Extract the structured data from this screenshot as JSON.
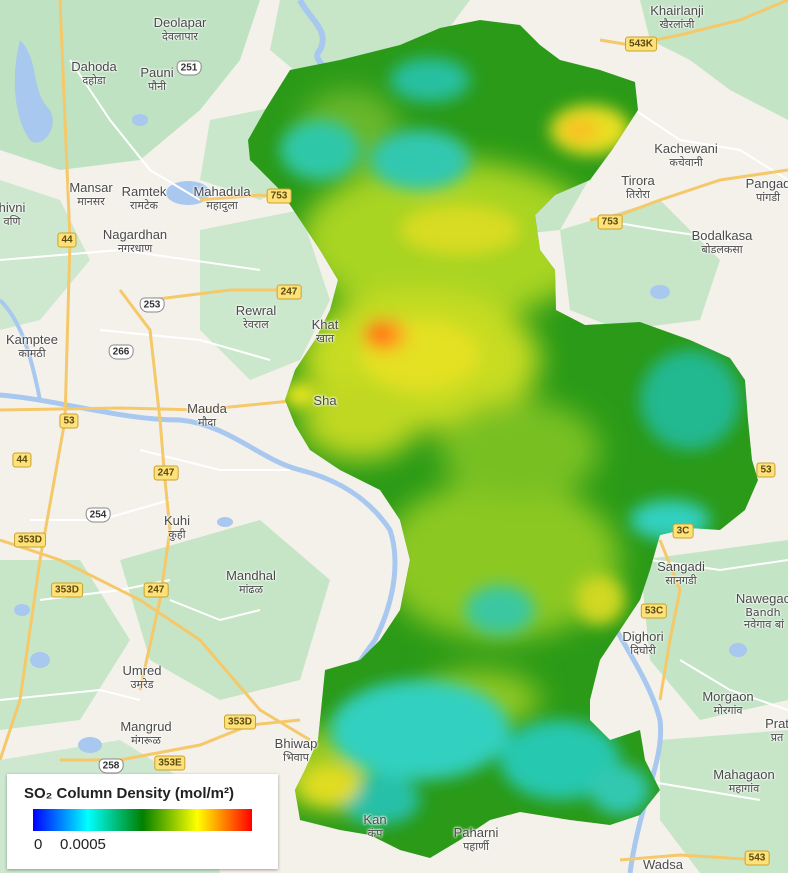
{
  "map": {
    "colors": {
      "land": "#f4f1ea",
      "forest": "#bfe2c2",
      "water": "#a8c8f0",
      "road_major": "#f5c86a",
      "road_minor": "#ffffff"
    },
    "places": [
      {
        "id": "deolapar",
        "en": "Deolapar",
        "hi": "देवलापार"
      },
      {
        "id": "khairlanji",
        "en": "Khairlanji",
        "hi": "खैरलांजी"
      },
      {
        "id": "dahoda",
        "en": "Dahoda",
        "hi": "दहोडा"
      },
      {
        "id": "pauni",
        "en": "Pauni",
        "hi": "पौनी"
      },
      {
        "id": "kachewani",
        "en": "Kachewani",
        "hi": "कचेवानी"
      },
      {
        "id": "mansar",
        "en": "Mansar",
        "hi": "मानसर"
      },
      {
        "id": "ramtek",
        "en": "Ramtek",
        "hi": "रामटेक"
      },
      {
        "id": "mahadula",
        "en": "Mahadula",
        "hi": "महादुला"
      },
      {
        "id": "tirora",
        "en": "Tirora",
        "hi": "तिरोरा"
      },
      {
        "id": "pangadi_n",
        "en": "Pangad",
        "hi": "पांगडी"
      },
      {
        "id": "shivni",
        "en": "hivni",
        "hi": "वणि"
      },
      {
        "id": "nagardhan",
        "en": "Nagardhan",
        "hi": "नगरधाण"
      },
      {
        "id": "bodalkasa",
        "en": "Bodalkasa",
        "hi": "बोडलकसा"
      },
      {
        "id": "rewral",
        "en": "Rewral",
        "hi": "रेवराल"
      },
      {
        "id": "khat",
        "en": "Khat",
        "hi": "खात"
      },
      {
        "id": "kamptee",
        "en": "Kamptee",
        "hi": "कामठी"
      },
      {
        "id": "mauda",
        "en": "Mauda",
        "hi": "मौदा"
      },
      {
        "id": "sha",
        "en": "Sha",
        "hi": ""
      },
      {
        "id": "kuhi",
        "en": "Kuhi",
        "hi": "कुही"
      },
      {
        "id": "sangadi",
        "en": "Sangadi",
        "hi": "सानगडी"
      },
      {
        "id": "mandhal",
        "en": "Mandhal",
        "hi": "मांढळ"
      },
      {
        "id": "nawegaon",
        "en": "Nawegac",
        "hi": "Bandh"
      },
      {
        "id": "nawegaon2",
        "en": "नवेगाव बां",
        "hi": ""
      },
      {
        "id": "dighori",
        "en": "Dighori",
        "hi": "दिघोरी"
      },
      {
        "id": "umred",
        "en": "Umred",
        "hi": "उमरेड"
      },
      {
        "id": "morgaon",
        "en": "Morgaon",
        "hi": "मोरगांव"
      },
      {
        "id": "mangrud",
        "en": "Mangrud",
        "hi": "मंगरूळ"
      },
      {
        "id": "prat",
        "en": "Prat",
        "hi": "प्रत"
      },
      {
        "id": "bhiwapur",
        "en": "Bhiwap",
        "hi": "भिवाप"
      },
      {
        "id": "mahagaon",
        "en": "Mahagaon",
        "hi": "महागांव"
      },
      {
        "id": "kanhan",
        "en": "Kan",
        "hi": "कंप"
      },
      {
        "id": "paharni",
        "en": "Paharni",
        "hi": "पहार्णी"
      },
      {
        "id": "wadsa",
        "en": "Wadsa",
        "hi": ""
      }
    ],
    "shields": [
      {
        "id": "s251",
        "text": "251",
        "style": "white"
      },
      {
        "id": "s543k",
        "text": "543K",
        "style": "yellow"
      },
      {
        "id": "s753a",
        "text": "753",
        "style": "yellow"
      },
      {
        "id": "s753b",
        "text": "753",
        "style": "yellow"
      },
      {
        "id": "s44a",
        "text": "44",
        "style": "yellow"
      },
      {
        "id": "s247a",
        "text": "247",
        "style": "yellow"
      },
      {
        "id": "s253",
        "text": "253",
        "style": "white"
      },
      {
        "id": "s266",
        "text": "266",
        "style": "white"
      },
      {
        "id": "s53a",
        "text": "53",
        "style": "yellow"
      },
      {
        "id": "s44b",
        "text": "44",
        "style": "yellow"
      },
      {
        "id": "s247b",
        "text": "247",
        "style": "yellow"
      },
      {
        "id": "s53b",
        "text": "53",
        "style": "yellow"
      },
      {
        "id": "s254",
        "text": "254",
        "style": "white"
      },
      {
        "id": "s353d_a",
        "text": "353D",
        "style": "yellow"
      },
      {
        "id": "s353c_a",
        "text": "3C",
        "style": "yellow"
      },
      {
        "id": "s353d_b",
        "text": "353D",
        "style": "yellow"
      },
      {
        "id": "s247c",
        "text": "247",
        "style": "yellow"
      },
      {
        "id": "s353c_b",
        "text": "53C",
        "style": "yellow"
      },
      {
        "id": "s353d_c",
        "text": "353D",
        "style": "yellow"
      },
      {
        "id": "s258",
        "text": "258",
        "style": "white"
      },
      {
        "id": "s353e",
        "text": "353E",
        "style": "yellow"
      },
      {
        "id": "s543",
        "text": "543",
        "style": "yellow"
      }
    ]
  },
  "overlay": {
    "variable": "SO2 column density",
    "colormap": [
      "#0000ff",
      "#00ffff",
      "#008000",
      "#ffff00",
      "#ff0000"
    ],
    "min": 0,
    "max": 0.0005
  },
  "legend": {
    "title": "SO₂ Column Density (mol/m²)",
    "min_label": "0",
    "max_label": "0.0005"
  }
}
